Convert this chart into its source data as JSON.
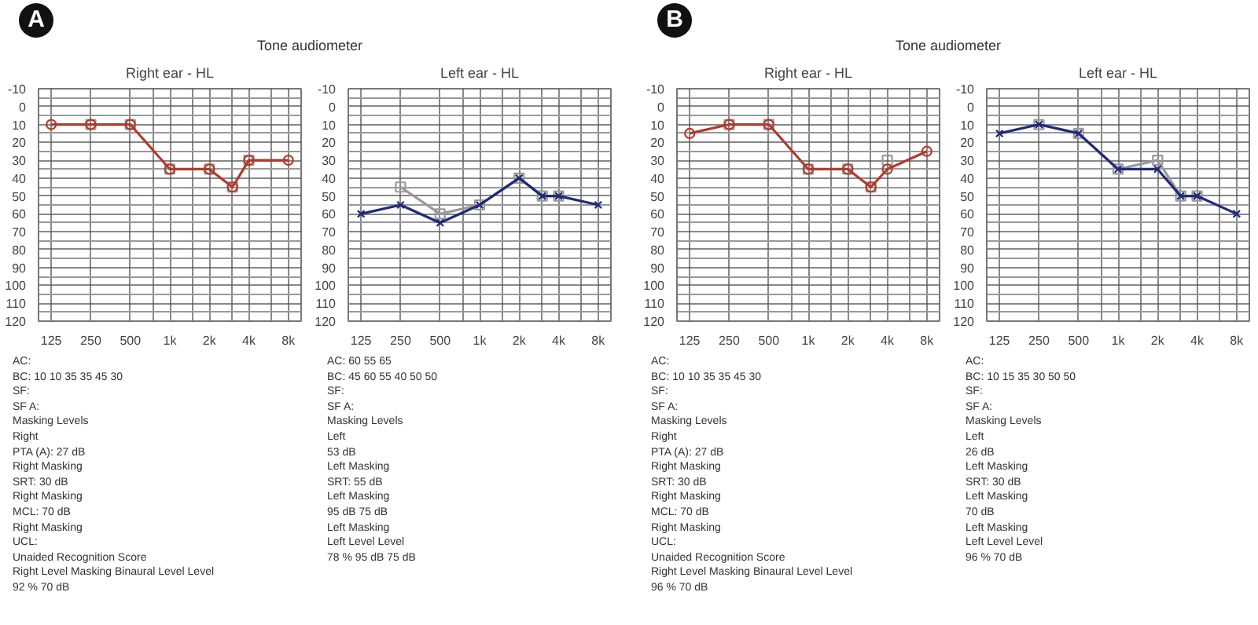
{
  "chart_data": [
    {
      "type": "line",
      "title": "Right ear - HL",
      "subtitle": "Tone audiometer",
      "log": "x",
      "xlim": [
        100,
        10000
      ],
      "xticks": [
        125,
        250,
        500,
        {
          "value": 750,
          "label": null
        },
        {
          "value": 1000,
          "label": "1k"
        },
        {
          "value": 1500,
          "label": null
        },
        {
          "value": 2000,
          "label": "2k"
        },
        {
          "value": 3000,
          "label": null
        },
        {
          "value": 4000,
          "label": "4k"
        },
        {
          "value": 6000,
          "label": null
        },
        {
          "value": 8000,
          "label": "8k"
        }
      ],
      "ylim": [
        120,
        -10
      ],
      "yticks": [
        -10,
        0,
        10,
        20,
        30,
        40,
        50,
        60,
        70,
        80,
        90,
        100,
        110,
        120
      ],
      "grid": true,
      "series": [
        {
          "type": "scatter",
          "marker": "square",
          "color": "#9a9a9a",
          "x": [
            250,
            500,
            1000,
            2000,
            3000,
            4000
          ],
          "values": [
            10,
            10,
            35,
            35,
            45,
            30
          ]
        },
        {
          "marker": "circle",
          "color": "#b23a2c",
          "x": [
            125,
            250,
            500,
            1000,
            2000,
            3000,
            4000,
            8000
          ],
          "values": [
            10,
            10,
            10,
            35,
            35,
            45,
            30,
            30
          ]
        }
      ],
      "annotations": [
        "A",
        "AC:",
        "BC: 10 10 35 35 45 30",
        "SF:",
        "SF A:",
        "Masking Levels",
        "Right",
        "PTA (A): 27 dB",
        "Right Masking",
        "SRT: 30 dB",
        "Right Masking",
        "MCL: 70 dB",
        "Right Masking",
        "UCL:",
        "Unaided Recognition Score",
        "Right Level Masking Binaural Level Level",
        "92 % 70 dB"
      ]
    },
    {
      "type": "line",
      "title": "Left ear - HL",
      "log": "x",
      "xlim": [
        100,
        10000
      ],
      "xticks": [
        125,
        250,
        500,
        {
          "value": 750,
          "label": null
        },
        {
          "value": 1000,
          "label": "1k"
        },
        {
          "value": 1500,
          "label": null
        },
        {
          "value": 2000,
          "label": "2k"
        },
        {
          "value": 3000,
          "label": null
        },
        {
          "value": 4000,
          "label": "4k"
        },
        {
          "value": 6000,
          "label": null
        },
        {
          "value": 8000,
          "label": "8k"
        }
      ],
      "ylim": [
        120,
        -10
      ],
      "yticks": [
        -10,
        0,
        10,
        20,
        30,
        40,
        50,
        60,
        70,
        80,
        90,
        100,
        110,
        120
      ],
      "grid": true,
      "series": [
        {
          "marker": "square",
          "color": "#9a9a9a",
          "x": [
            250,
            500,
            1000,
            2000,
            3000,
            4000
          ],
          "values": [
            45,
            60,
            55,
            40,
            50,
            50
          ]
        },
        {
          "marker": "cross",
          "color": "#1f2a78",
          "x": [
            125,
            250,
            500,
            1000,
            2000,
            3000,
            4000,
            8000
          ],
          "values": [
            60,
            55,
            65,
            55,
            40,
            50,
            50,
            55
          ]
        }
      ],
      "annotations": [
        "AC: 60 55 65",
        "BC: 45 60 55 40 50 50",
        "SF:",
        "SF A:",
        "Masking Levels",
        "Left",
        "53 dB",
        "Left Masking",
        "SRT: 55 dB",
        "Left Masking",
        "95 dB 75 dB",
        "Left Masking",
        "Left Level Level",
        "78 % 95 dB 75 dB"
      ]
    },
    {
      "type": "line",
      "title": "Right ear - HL",
      "subtitle": "Tone audiometer",
      "log": "x",
      "xlim": [
        100,
        10000
      ],
      "xticks": [
        125,
        250,
        500,
        {
          "value": 750,
          "label": null
        },
        {
          "value": 1000,
          "label": "1k"
        },
        {
          "value": 1500,
          "label": null
        },
        {
          "value": 2000,
          "label": "2k"
        },
        {
          "value": 3000,
          "label": null
        },
        {
          "value": 4000,
          "label": "4k"
        },
        {
          "value": 6000,
          "label": null
        },
        {
          "value": 8000,
          "label": "8k"
        }
      ],
      "ylim": [
        120,
        -10
      ],
      "yticks": [
        -10,
        0,
        10,
        20,
        30,
        40,
        50,
        60,
        70,
        80,
        90,
        100,
        110,
        120
      ],
      "grid": true,
      "series": [
        {
          "type": "scatter",
          "marker": "square",
          "color": "#9a9a9a",
          "x": [
            250,
            500,
            1000,
            2000,
            3000,
            4000
          ],
          "values": [
            10,
            10,
            35,
            35,
            45,
            30
          ]
        },
        {
          "marker": "circle",
          "color": "#b23a2c",
          "x": [
            125,
            250,
            500,
            1000,
            2000,
            3000,
            4000,
            8000
          ],
          "values": [
            15,
            10,
            10,
            35,
            35,
            45,
            35,
            25
          ]
        }
      ],
      "annotations": [
        "B",
        "AC:",
        "BC: 10 10 35 35 45 30",
        "SF:",
        "SF A:",
        "Masking Levels",
        "Right",
        "PTA (A): 27 dB",
        "Right Masking",
        "SRT: 30 dB",
        "Right Masking",
        "MCL: 70 dB",
        "Right Masking",
        "UCL:",
        "Unaided Recognition Score",
        "Right Level Masking Binaural Level Level",
        "96 % 70 dB"
      ]
    },
    {
      "type": "line",
      "title": "Left ear - HL",
      "log": "x",
      "xlim": [
        100,
        10000
      ],
      "xticks": [
        125,
        250,
        500,
        {
          "value": 750,
          "label": null
        },
        {
          "value": 1000,
          "label": "1k"
        },
        {
          "value": 1500,
          "label": null
        },
        {
          "value": 2000,
          "label": "2k"
        },
        {
          "value": 3000,
          "label": null
        },
        {
          "value": 4000,
          "label": "4k"
        },
        {
          "value": 6000,
          "label": null
        },
        {
          "value": 8000,
          "label": "8k"
        }
      ],
      "ylim": [
        120,
        -10
      ],
      "yticks": [
        -10,
        0,
        10,
        20,
        30,
        40,
        50,
        60,
        70,
        80,
        90,
        100,
        110,
        120
      ],
      "grid": true,
      "series": [
        {
          "marker": "square",
          "color": "#9a9a9a",
          "x": [
            250,
            500,
            1000,
            2000,
            3000,
            4000
          ],
          "values": [
            10,
            15,
            35,
            30,
            50,
            50
          ]
        },
        {
          "marker": "cross",
          "color": "#1f2a78",
          "x": [
            125,
            250,
            500,
            1000,
            2000,
            3000,
            4000,
            8000
          ],
          "values": [
            15,
            10,
            15,
            35,
            35,
            50,
            50,
            60
          ]
        }
      ],
      "annotations": [
        "AC:",
        "BC: 10 15 35 30 50 50",
        "SF:",
        "SF A:",
        "Masking Levels",
        "Left",
        "26 dB",
        "Left Masking",
        "SRT: 30 dB",
        "Left Masking",
        "70 dB",
        "Left Masking",
        "Left Level Level",
        "96 % 70 dB"
      ]
    }
  ]
}
